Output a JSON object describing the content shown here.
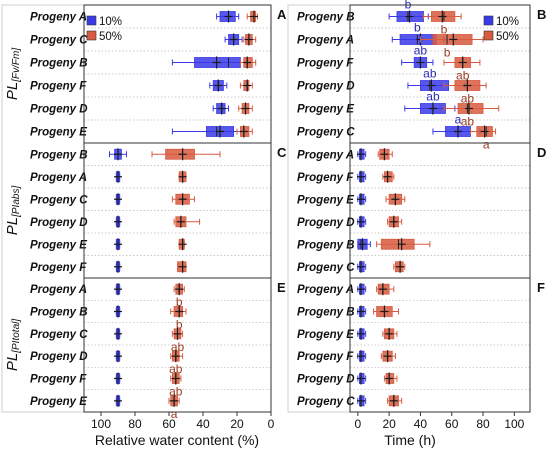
{
  "colors": {
    "c10": "#3a3ae8",
    "c50": "#d85a40",
    "sig10": "#2a2ab8",
    "sig50": "#9a3a20",
    "outline": "#333333",
    "grid": "#b8b8b8"
  },
  "chart_data": {
    "type": "box",
    "ylabels": [
      {
        "prefix": "PL",
        "subscript": "[Fv/Fm]"
      },
      {
        "prefix": "PL",
        "subscript": "[PIabs]"
      },
      {
        "prefix": "PL",
        "subscript": "[PItotal]"
      }
    ],
    "xlabel_left": "Relative water content (%)",
    "xlabel_right": "Time (h)",
    "xticks_left": [
      "100",
      "80",
      "60",
      "40",
      "20",
      "0"
    ],
    "xticks_right": [
      "0",
      "20",
      "40",
      "60",
      "80",
      "100"
    ],
    "xlim_left": [
      110,
      0
    ],
    "xlim_right": [
      -5,
      110
    ],
    "legend": {
      "series": [
        "10%",
        "50%"
      ],
      "location": "top-right"
    },
    "panels": [
      {
        "id": "A",
        "rows": [
          {
            "label": "Progeny A",
            "s10": {
              "q1": 21,
              "q3": 30,
              "med": 25,
              "mean": 25,
              "wl": 19,
              "wh": 32
            },
            "s50": {
              "q1": 9,
              "q3": 12,
              "med": 10,
              "mean": 10,
              "wl": 8,
              "wh": 14
            }
          },
          {
            "label": "Progeny C",
            "s10": {
              "q1": 19,
              "q3": 25,
              "med": 22,
              "mean": 22,
              "wl": 17,
              "wh": 27
            },
            "s50": {
              "q1": 11,
              "q3": 15,
              "med": 13,
              "mean": 13,
              "wl": 9,
              "wh": 16
            }
          },
          {
            "label": "Progeny B",
            "s10": {
              "q1": 18,
              "q3": 45,
              "med": 25,
              "mean": 32,
              "wl": 14,
              "wh": 58
            },
            "s50": {
              "q1": 11,
              "q3": 16,
              "med": 14,
              "mean": 14,
              "wl": 9,
              "wh": 18
            }
          },
          {
            "label": "Progeny F",
            "s10": {
              "q1": 28,
              "q3": 34,
              "med": 31,
              "mean": 31,
              "wl": 26,
              "wh": 36
            },
            "s50": {
              "q1": 13,
              "q3": 16,
              "med": 14,
              "mean": 14,
              "wl": 11,
              "wh": 18
            }
          },
          {
            "label": "Progeny D",
            "s10": {
              "q1": 27,
              "q3": 32,
              "med": 29,
              "mean": 29,
              "wl": 25,
              "wh": 34
            },
            "s50": {
              "q1": 13,
              "q3": 17,
              "med": 15,
              "mean": 15,
              "wl": 11,
              "wh": 19
            }
          },
          {
            "label": "Progeny E",
            "s10": {
              "q1": 22,
              "q3": 38,
              "med": 32,
              "mean": 30,
              "wl": 20,
              "wh": 58
            },
            "s50": {
              "q1": 13,
              "q3": 18,
              "med": 16,
              "mean": 16,
              "wl": 11,
              "wh": 20
            }
          }
        ]
      },
      {
        "id": "B",
        "rows": [
          {
            "label": "Progeny B",
            "s10": {
              "q1": 25,
              "q3": 42,
              "med": 32,
              "mean": 33,
              "wl": 20,
              "wh": 45
            },
            "s50": {
              "q1": 47,
              "q3": 62,
              "med": 55,
              "mean": 54,
              "wl": 42,
              "wh": 66
            },
            "sig10": "b",
            "sig50": "b"
          },
          {
            "label": "Progeny A",
            "s10": {
              "q1": 27,
              "q3": 50,
              "med": 38,
              "mean": 40,
              "wl": 22,
              "wh": 55
            },
            "s50": {
              "q1": 48,
              "q3": 73,
              "med": 57,
              "mean": 61,
              "wl": 40,
              "wh": 80
            },
            "sig10": "b",
            "sig50": "b"
          },
          {
            "label": "Progeny F",
            "s10": {
              "q1": 36,
              "q3": 44,
              "med": 40,
              "mean": 40,
              "wl": 28,
              "wh": 48
            },
            "s50": {
              "q1": 62,
              "q3": 72,
              "med": 67,
              "mean": 67,
              "wl": 55,
              "wh": 78
            },
            "sig10": "ab",
            "sig50": "ab"
          },
          {
            "label": "Progeny D",
            "s10": {
              "q1": 40,
              "q3": 58,
              "med": 46,
              "mean": 47,
              "wl": 32,
              "wh": 68
            },
            "s50": {
              "q1": 62,
              "q3": 78,
              "med": 70,
              "mean": 70,
              "wl": 55,
              "wh": 82
            },
            "sig10": "ab",
            "sig50": "ab"
          },
          {
            "label": "Progeny E",
            "s10": {
              "q1": 40,
              "q3": 56,
              "med": 48,
              "mean": 48,
              "wl": 30,
              "wh": 62
            },
            "s50": {
              "q1": 64,
              "q3": 80,
              "med": 70,
              "mean": 71,
              "wl": 55,
              "wh": 90
            },
            "sig10": "ab",
            "sig50": "ab"
          },
          {
            "label": "Progeny C",
            "s10": {
              "q1": 56,
              "q3": 72,
              "med": 64,
              "mean": 64,
              "wl": 48,
              "wh": 78
            },
            "s50": {
              "q1": 76,
              "q3": 86,
              "med": 82,
              "mean": 81,
              "wl": 72,
              "wh": 88
            },
            "sig10": "a",
            "sig50": "a"
          }
        ]
      },
      {
        "id": "C",
        "rows": [
          {
            "label": "Progeny B",
            "s10": {
              "q1": 88,
              "q3": 92,
              "med": 90,
              "mean": 90,
              "wl": 85,
              "wh": 95
            },
            "s50": {
              "q1": 45,
              "q3": 62,
              "med": 52,
              "mean": 52,
              "wl": 30,
              "wh": 70
            }
          },
          {
            "label": "Progeny A",
            "s10": {
              "q1": 89,
              "q3": 91,
              "med": 90,
              "mean": 90,
              "wl": 89,
              "wh": 91
            },
            "s50": {
              "q1": 50,
              "q3": 54,
              "med": 52,
              "mean": 52,
              "wl": 50,
              "wh": 54
            }
          },
          {
            "label": "Progeny C",
            "s10": {
              "q1": 89,
              "q3": 91,
              "med": 90,
              "mean": 90,
              "wl": 89,
              "wh": 91
            },
            "s50": {
              "q1": 48,
              "q3": 56,
              "med": 52,
              "mean": 52,
              "wl": 45,
              "wh": 58
            }
          },
          {
            "label": "Progeny D",
            "s10": {
              "q1": 89,
              "q3": 91,
              "med": 90,
              "mean": 90,
              "wl": 89,
              "wh": 91
            },
            "s50": {
              "q1": 50,
              "q3": 56,
              "med": 53,
              "mean": 53,
              "wl": 42,
              "wh": 57
            }
          },
          {
            "label": "Progeny E",
            "s10": {
              "q1": 89,
              "q3": 91,
              "med": 90,
              "mean": 90,
              "wl": 89,
              "wh": 91
            },
            "s50": {
              "q1": 51,
              "q3": 54,
              "med": 52,
              "mean": 52,
              "wl": 51,
              "wh": 54
            }
          },
          {
            "label": "Progeny F",
            "s10": {
              "q1": 89,
              "q3": 91,
              "med": 90,
              "mean": 90,
              "wl": 89,
              "wh": 91
            },
            "s50": {
              "q1": 50,
              "q3": 55,
              "med": 52,
              "mean": 52,
              "wl": 50,
              "wh": 55
            }
          }
        ]
      },
      {
        "id": "D",
        "rows": [
          {
            "label": "Progeny A",
            "s10": {
              "q1": 1,
              "q3": 4,
              "med": 2,
              "mean": 2,
              "wl": 0,
              "wh": 5
            },
            "s50": {
              "q1": 14,
              "q3": 20,
              "med": 17,
              "mean": 17,
              "wl": 13,
              "wh": 22
            }
          },
          {
            "label": "Progeny F",
            "s10": {
              "q1": 1,
              "q3": 4,
              "med": 2,
              "mean": 2,
              "wl": 0,
              "wh": 5
            },
            "s50": {
              "q1": 17,
              "q3": 22,
              "med": 19,
              "mean": 19,
              "wl": 16,
              "wh": 23
            }
          },
          {
            "label": "Progeny E",
            "s10": {
              "q1": 1,
              "q3": 4,
              "med": 2,
              "mean": 2,
              "wl": 0,
              "wh": 5
            },
            "s50": {
              "q1": 20,
              "q3": 28,
              "med": 24,
              "mean": 24,
              "wl": 18,
              "wh": 30
            }
          },
          {
            "label": "Progeny D",
            "s10": {
              "q1": 1,
              "q3": 4,
              "med": 2,
              "mean": 2,
              "wl": 0,
              "wh": 5
            },
            "s50": {
              "q1": 20,
              "q3": 26,
              "med": 23,
              "mean": 23,
              "wl": 19,
              "wh": 28
            }
          },
          {
            "label": "Progeny B",
            "s10": {
              "q1": 0,
              "q3": 6,
              "med": 2,
              "mean": 3,
              "wl": 0,
              "wh": 8
            },
            "s50": {
              "q1": 15,
              "q3": 36,
              "med": 26,
              "mean": 28,
              "wl": 12,
              "wh": 46
            }
          },
          {
            "label": "Progeny C",
            "s10": {
              "q1": 1,
              "q3": 4,
              "med": 2,
              "mean": 2,
              "wl": 0,
              "wh": 5
            },
            "s50": {
              "q1": 24,
              "q3": 29,
              "med": 27,
              "mean": 27,
              "wl": 23,
              "wh": 30
            }
          }
        ]
      },
      {
        "id": "E",
        "rows": [
          {
            "label": "Progeny A",
            "s10": {
              "q1": 89,
              "q3": 91,
              "med": 90,
              "mean": 90,
              "wl": 89,
              "wh": 91
            },
            "s50": {
              "q1": 52,
              "q3": 56,
              "med": 54,
              "mean": 54,
              "wl": 51,
              "wh": 57
            },
            "sig50": "b"
          },
          {
            "label": "Progeny B",
            "s10": {
              "q1": 89,
              "q3": 91,
              "med": 90,
              "mean": 90,
              "wl": 89,
              "wh": 91
            },
            "s50": {
              "q1": 52,
              "q3": 57,
              "med": 54,
              "mean": 54,
              "wl": 50,
              "wh": 59
            },
            "sig50": "b"
          },
          {
            "label": "Progeny C",
            "s10": {
              "q1": 89,
              "q3": 91,
              "med": 90,
              "mean": 90,
              "wl": 89,
              "wh": 91
            },
            "s50": {
              "q1": 53,
              "q3": 57,
              "med": 55,
              "mean": 55,
              "wl": 52,
              "wh": 58
            },
            "sig50": "ab"
          },
          {
            "label": "Progeny D",
            "s10": {
              "q1": 89,
              "q3": 91,
              "med": 90,
              "mean": 90,
              "wl": 89,
              "wh": 91
            },
            "s50": {
              "q1": 54,
              "q3": 58,
              "med": 56,
              "mean": 56,
              "wl": 52,
              "wh": 59
            },
            "sig50": "ab"
          },
          {
            "label": "Progeny F",
            "s10": {
              "q1": 89,
              "q3": 91,
              "med": 90,
              "mean": 90,
              "wl": 89,
              "wh": 91
            },
            "s50": {
              "q1": 54,
              "q3": 58,
              "med": 56,
              "mean": 56,
              "wl": 53,
              "wh": 59
            },
            "sig50": "ab"
          },
          {
            "label": "Progeny E",
            "s10": {
              "q1": 89,
              "q3": 91,
              "med": 90,
              "mean": 90,
              "wl": 89,
              "wh": 91
            },
            "s50": {
              "q1": 55,
              "q3": 59,
              "med": 57,
              "mean": 57,
              "wl": 54,
              "wh": 60
            },
            "sig50": "a"
          }
        ]
      },
      {
        "id": "F",
        "rows": [
          {
            "label": "Progeny A",
            "s10": {
              "q1": 1,
              "q3": 4,
              "med": 2,
              "mean": 2,
              "wl": 0,
              "wh": 5
            },
            "s50": {
              "q1": 13,
              "q3": 20,
              "med": 16,
              "mean": 16,
              "wl": 12,
              "wh": 23
            }
          },
          {
            "label": "Progeny B",
            "s10": {
              "q1": 1,
              "q3": 4,
              "med": 2,
              "mean": 2,
              "wl": 0,
              "wh": 5
            },
            "s50": {
              "q1": 12,
              "q3": 22,
              "med": 17,
              "mean": 17,
              "wl": 10,
              "wh": 26
            }
          },
          {
            "label": "Progeny E",
            "s10": {
              "q1": 1,
              "q3": 4,
              "med": 2,
              "mean": 2,
              "wl": 0,
              "wh": 5
            },
            "s50": {
              "q1": 17,
              "q3": 23,
              "med": 20,
              "mean": 20,
              "wl": 16,
              "wh": 25
            }
          },
          {
            "label": "Progeny F",
            "s10": {
              "q1": 1,
              "q3": 4,
              "med": 2,
              "mean": 2,
              "wl": 0,
              "wh": 5
            },
            "s50": {
              "q1": 16,
              "q3": 22,
              "med": 19,
              "mean": 19,
              "wl": 15,
              "wh": 24
            }
          },
          {
            "label": "Progeny D",
            "s10": {
              "q1": 1,
              "q3": 4,
              "med": 2,
              "mean": 2,
              "wl": 0,
              "wh": 5
            },
            "s50": {
              "q1": 18,
              "q3": 23,
              "med": 20,
              "mean": 20,
              "wl": 17,
              "wh": 25
            }
          },
          {
            "label": "Progeny C",
            "s10": {
              "q1": 1,
              "q3": 4,
              "med": 2,
              "mean": 2,
              "wl": 0,
              "wh": 5
            },
            "s50": {
              "q1": 20,
              "q3": 26,
              "med": 23,
              "mean": 23,
              "wl": 19,
              "wh": 28
            }
          }
        ]
      }
    ]
  }
}
